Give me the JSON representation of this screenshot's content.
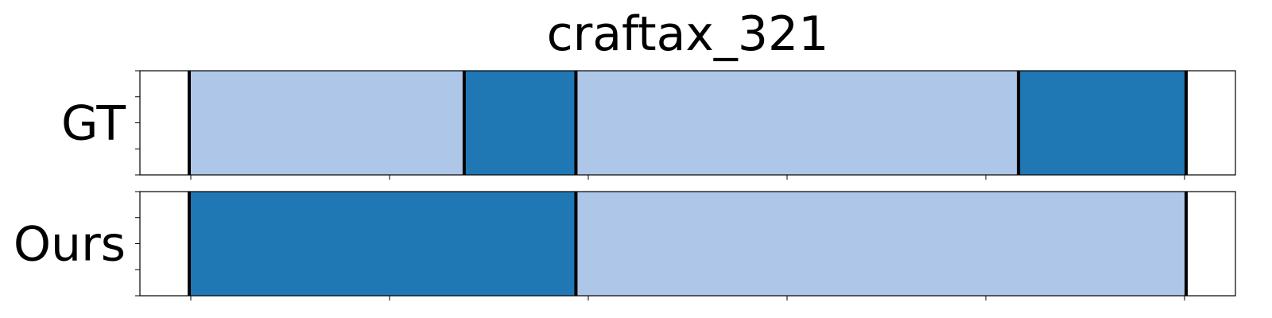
{
  "chart_data": {
    "type": "segmentation-timeline",
    "title": "craftax_321",
    "xlim": [
      0,
      1
    ],
    "colors": {
      "light": "#aec7e8",
      "dark": "#1f77b4"
    },
    "rows": [
      {
        "name": "GT",
        "segments": [
          {
            "start": 0.045,
            "end": 0.296,
            "color": "light"
          },
          {
            "start": 0.296,
            "end": 0.398,
            "color": "dark"
          },
          {
            "start": 0.398,
            "end": 0.802,
            "color": "light"
          },
          {
            "start": 0.802,
            "end": 0.955,
            "color": "dark"
          }
        ]
      },
      {
        "name": "Ours",
        "segments": [
          {
            "start": 0.045,
            "end": 0.398,
            "color": "dark"
          },
          {
            "start": 0.398,
            "end": 0.955,
            "color": "light"
          }
        ]
      }
    ]
  }
}
